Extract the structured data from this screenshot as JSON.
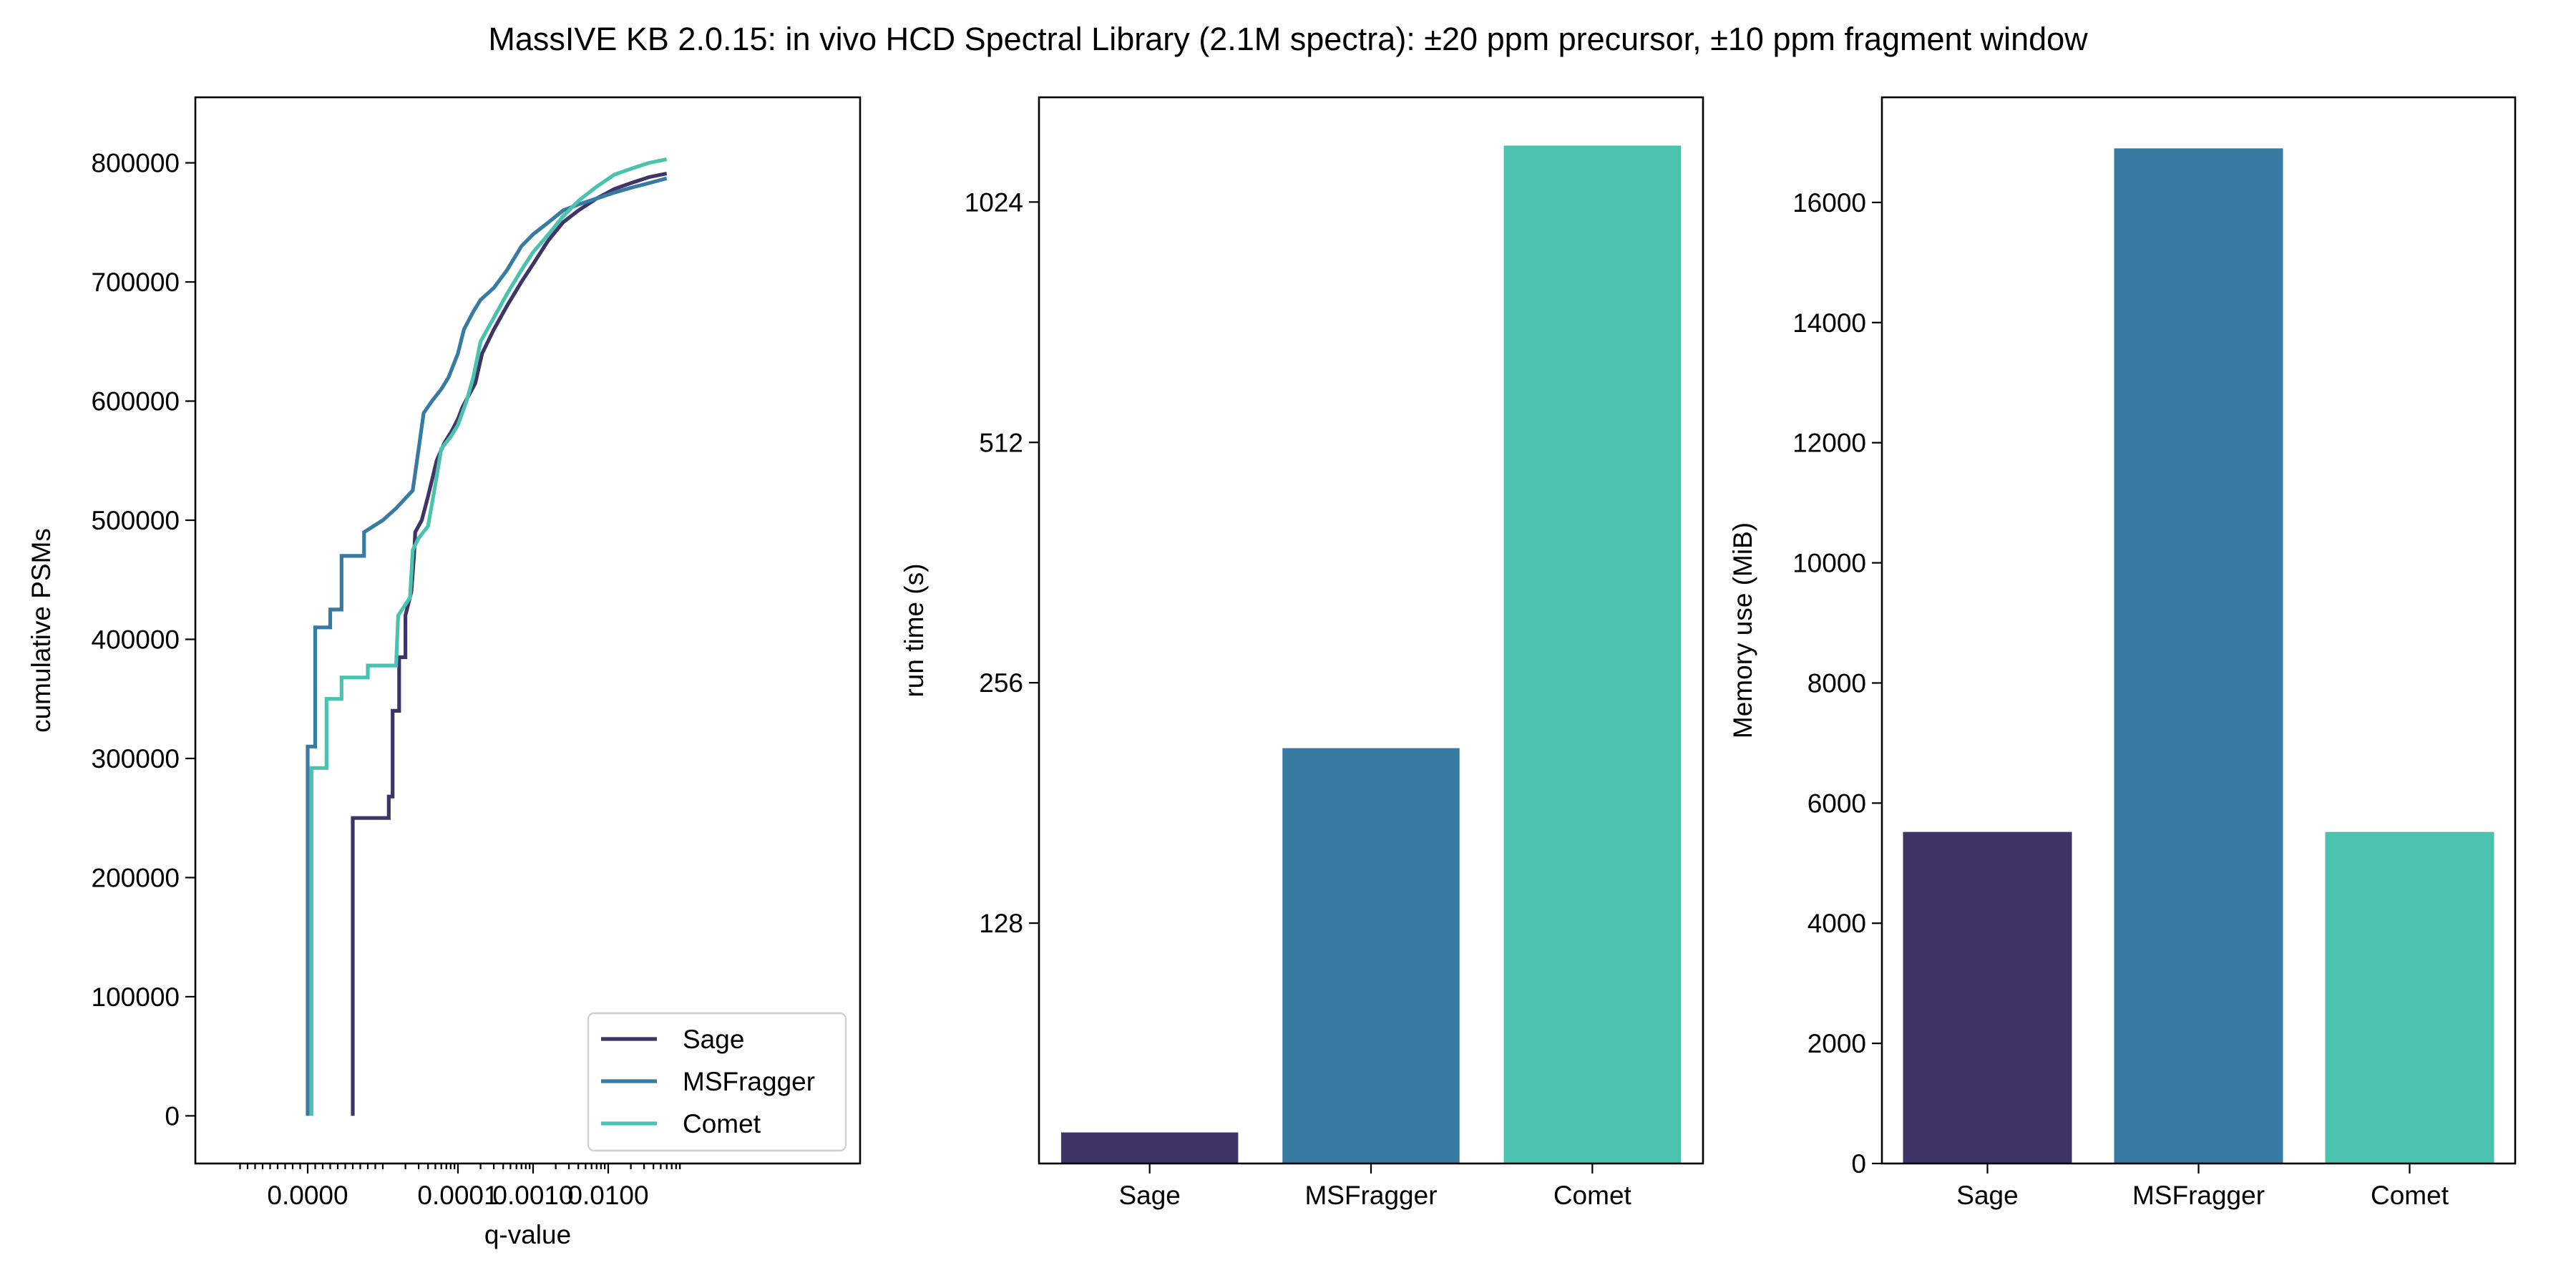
{
  "title": "MassIVE KB 2.0.15: in vivo HCD Spectral Library (2.1M spectra): ±20 ppm precursor, ±10 ppm fragment window",
  "colors": {
    "Sage": "#3e3468",
    "MSFragger": "#377ba3",
    "Comet": "#4bc2ad"
  },
  "chart_data": [
    {
      "type": "line",
      "xlabel": "q-value",
      "ylabel": "cumulative PSMs",
      "xscale": "symlog",
      "ylim": [
        -40000,
        855000
      ],
      "yticks": [
        0,
        100000,
        200000,
        300000,
        400000,
        500000,
        600000,
        700000,
        800000
      ],
      "ytick_labels": [
        "0",
        "100000",
        "200000",
        "300000",
        "400000",
        "500000",
        "600000",
        "700000",
        "800000"
      ],
      "xtick_labels": [
        "0.0000",
        "0.0001",
        "0.0010",
        "0.0100"
      ],
      "legend": "bottom-right",
      "series": [
        {
          "name": "Sage",
          "points": [
            [
              6e-06,
              0
            ],
            [
              6e-06,
              250000
            ],
            [
              1.2e-05,
              250000
            ],
            [
              1.2e-05,
              268000
            ],
            [
              1.35e-05,
              268000
            ],
            [
              1.35e-05,
              340000
            ],
            [
              1.65e-05,
              340000
            ],
            [
              1.65e-05,
              385000
            ],
            [
              2e-05,
              385000
            ],
            [
              2e-05,
              420000
            ],
            [
              2.4e-05,
              440000
            ],
            [
              2.6e-05,
              470000
            ],
            [
              2.7e-05,
              490000
            ],
            [
              3.3e-05,
              500000
            ],
            [
              4e-05,
              520000
            ],
            [
              5.2e-05,
              550000
            ],
            [
              6.6e-05,
              565000
            ],
            [
              8.3e-05,
              575000
            ],
            [
              0.0001,
              585000
            ],
            [
              0.000115,
              595000
            ],
            [
              0.00014,
              605000
            ],
            [
              0.00017,
              615000
            ],
            [
              0.00021,
              640000
            ],
            [
              0.0003,
              660000
            ],
            [
              0.00045,
              680000
            ],
            [
              0.0007,
              700000
            ],
            [
              0.001,
              715000
            ],
            [
              0.0016,
              735000
            ],
            [
              0.0025,
              750000
            ],
            [
              0.004,
              760000
            ],
            [
              0.007,
              770000
            ],
            [
              0.012,
              778000
            ],
            [
              0.02,
              783000
            ],
            [
              0.035,
              788000
            ],
            [
              0.06,
              791000
            ]
          ]
        },
        {
          "name": "MSFragger",
          "points": [
            [
              0.0,
              0
            ],
            [
              0.0,
              310000
            ],
            [
              1e-06,
              310000
            ],
            [
              1e-06,
              410000
            ],
            [
              3e-06,
              410000
            ],
            [
              3e-06,
              425000
            ],
            [
              4.5e-06,
              425000
            ],
            [
              4.5e-06,
              470000
            ],
            [
              7.5e-06,
              470000
            ],
            [
              7.5e-06,
              490000
            ],
            [
              1e-05,
              500000
            ],
            [
              1.5e-05,
              510000
            ],
            [
              2.5e-05,
              525000
            ],
            [
              3e-05,
              560000
            ],
            [
              3.5e-05,
              590000
            ],
            [
              4.5e-05,
              600000
            ],
            [
              6e-05,
              610000
            ],
            [
              7.5e-05,
              620000
            ],
            [
              0.0001,
              640000
            ],
            [
              0.00012,
              660000
            ],
            [
              0.00016,
              675000
            ],
            [
              0.0002,
              685000
            ],
            [
              0.0003,
              695000
            ],
            [
              0.00045,
              710000
            ],
            [
              0.0007,
              730000
            ],
            [
              0.001,
              740000
            ],
            [
              0.0016,
              750000
            ],
            [
              0.0025,
              760000
            ],
            [
              0.004,
              765000
            ],
            [
              0.007,
              770000
            ],
            [
              0.012,
              775000
            ],
            [
              0.02,
              779000
            ],
            [
              0.035,
              783000
            ],
            [
              0.06,
              787000
            ]
          ]
        },
        {
          "name": "Comet",
          "points": [
            [
              5e-07,
              0
            ],
            [
              5e-07,
              292000
            ],
            [
              2.5e-06,
              292000
            ],
            [
              2.5e-06,
              350000
            ],
            [
              4.5e-06,
              350000
            ],
            [
              4.5e-06,
              368000
            ],
            [
              8e-06,
              368000
            ],
            [
              8e-06,
              378000
            ],
            [
              1.5e-05,
              378000
            ],
            [
              1.6e-05,
              420000
            ],
            [
              2.3e-05,
              435000
            ],
            [
              2.5e-05,
              475000
            ],
            [
              3e-05,
              485000
            ],
            [
              4e-05,
              495000
            ],
            [
              5e-05,
              530000
            ],
            [
              6e-05,
              560000
            ],
            [
              8e-05,
              570000
            ],
            [
              0.0001,
              580000
            ],
            [
              0.00013,
              600000
            ],
            [
              0.00016,
              620000
            ],
            [
              0.0002,
              650000
            ],
            [
              0.0003,
              670000
            ],
            [
              0.00045,
              690000
            ],
            [
              0.0007,
              710000
            ],
            [
              0.001,
              725000
            ],
            [
              0.0016,
              740000
            ],
            [
              0.0025,
              755000
            ],
            [
              0.004,
              768000
            ],
            [
              0.007,
              780000
            ],
            [
              0.012,
              790000
            ],
            [
              0.02,
              795000
            ],
            [
              0.035,
              800000
            ],
            [
              0.06,
              803000
            ]
          ]
        }
      ]
    },
    {
      "type": "bar",
      "yscale": "log2",
      "ylabel": "run time (s)",
      "categories": [
        "Sage",
        "MSFragger",
        "Comet"
      ],
      "values": [
        70,
        212,
        1205
      ],
      "ylim": [
        64,
        1385
      ],
      "yticks": [
        128,
        256,
        512,
        1024
      ],
      "ytick_labels": [
        "128",
        "256",
        "512",
        "1024"
      ]
    },
    {
      "type": "bar",
      "ylabel": "Memory use (MiB)",
      "categories": [
        "Sage",
        "MSFragger",
        "Comet"
      ],
      "values": [
        5520,
        16900,
        5520
      ],
      "ylim": [
        0,
        17750
      ],
      "yticks": [
        0,
        2000,
        4000,
        6000,
        8000,
        10000,
        12000,
        14000,
        16000
      ],
      "ytick_labels": [
        "0",
        "2000",
        "4000",
        "6000",
        "8000",
        "10000",
        "12000",
        "14000",
        "16000"
      ]
    }
  ]
}
